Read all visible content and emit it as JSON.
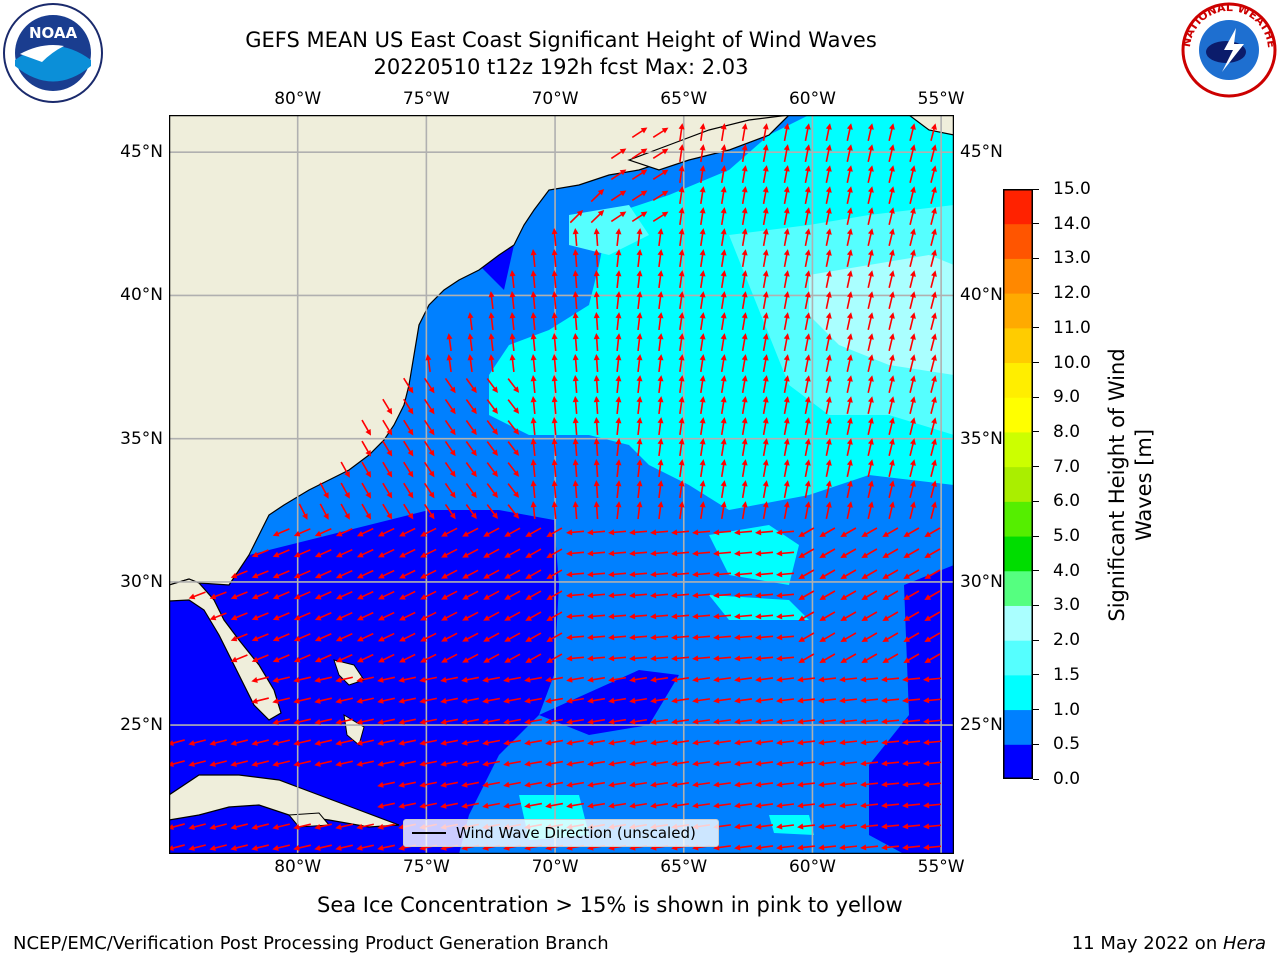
{
  "title": {
    "line1": "GEFS MEAN US East Coast Significant Height of Wind Waves",
    "line2": "20220510 t12z 192h fcst   Max: 2.03"
  },
  "logos": {
    "left": {
      "icon": "noaa-logo-icon",
      "text": "NOAA"
    },
    "right": {
      "icon": "nws-logo-icon",
      "text": "NATIONAL WEATHER SERVICE"
    }
  },
  "map": {
    "lon_ticks_top": [
      "80°W",
      "75°W",
      "70°W",
      "65°W",
      "60°W",
      "55°W"
    ],
    "lon_ticks_bottom": [
      "80°W",
      "75°W",
      "70°W",
      "65°W",
      "60°W",
      "55°W"
    ],
    "lat_ticks_left": [
      "45°N",
      "40°N",
      "35°N",
      "30°N",
      "25°N"
    ],
    "lat_ticks_right": [
      "45°N",
      "40°N",
      "35°N",
      "30°N",
      "25°N"
    ],
    "extent": {
      "lon": [
        -85,
        -54.5
      ],
      "lat": [
        20.5,
        46.3
      ]
    },
    "colors": {
      "land": "#efeedb",
      "waves_0_0p5": "#0000ff",
      "waves_0p5_1": "#0080ff",
      "waves_1_1p5": "#00ffff",
      "waves_1p5_2": "#55ffff",
      "waves_2_3": "#aaffff",
      "arrow": "#ff0000",
      "grid": "#b0b0b0"
    },
    "legend_label": "Wind Wave Direction (unscaled)"
  },
  "colorbar": {
    "label": "Significant Height of Wind Waves [m]",
    "label_line1": "Significant Height of Wind",
    "label_line2": "Waves [m]",
    "ticks": [
      "15.0",
      "14.0",
      "13.0",
      "12.0",
      "11.0",
      "10.0",
      "9.0",
      "8.0",
      "7.0",
      "6.0",
      "5.0",
      "4.0",
      "3.0",
      "2.0",
      "1.5",
      "1.0",
      "0.5",
      "0.0"
    ],
    "colors_bottom_to_top": [
      "#0000ff",
      "#0080ff",
      "#00ffff",
      "#55ffff",
      "#aaffff",
      "#55ff80",
      "#00dd00",
      "#55ee00",
      "#aaee00",
      "#ccff00",
      "#ffff00",
      "#ffee00",
      "#ffcc00",
      "#ffaa00",
      "#ff8800",
      "#ff5500",
      "#ff2200"
    ]
  },
  "ice_note": "Sea Ice Concentration > 15% is shown in pink to yellow",
  "footer": {
    "left": "NCEP/EMC/Verification Post Processing Product Generation Branch",
    "right_prefix": "11 May 2022 on ",
    "right_host": "Hera"
  }
}
